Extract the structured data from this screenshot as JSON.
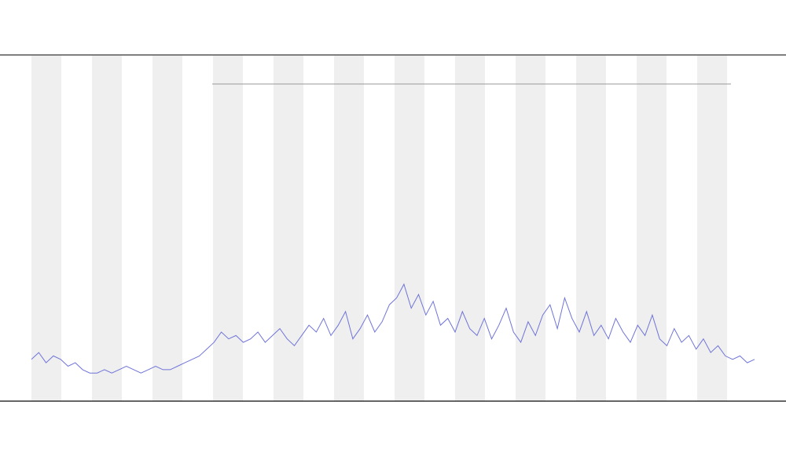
{
  "chart_data": {
    "type": "line",
    "color": "#6f74d8",
    "x": [
      0,
      1,
      2,
      3,
      4,
      5,
      6,
      7,
      8,
      9,
      10,
      11,
      12,
      13,
      14,
      15,
      16,
      17,
      18,
      19,
      20,
      21,
      22,
      23,
      24,
      25,
      26,
      27,
      28,
      29,
      30,
      31,
      32,
      33,
      34,
      35,
      36,
      37,
      38,
      39,
      40,
      41,
      42,
      43,
      44,
      45,
      46,
      47,
      48,
      49,
      50,
      51,
      52,
      53,
      54,
      55,
      56,
      57,
      58,
      59,
      60,
      61,
      62,
      63,
      64,
      65,
      66,
      67,
      68,
      69,
      70,
      71,
      72,
      73,
      74,
      75,
      76,
      77,
      78,
      79,
      80,
      81,
      82,
      83,
      84,
      85,
      86,
      87,
      88,
      89,
      90,
      91,
      92,
      93,
      94,
      95,
      96,
      97,
      98,
      99
    ],
    "values": [
      12,
      14,
      11,
      13,
      12,
      10,
      11,
      9,
      8,
      8,
      9,
      8,
      9,
      10,
      9,
      8,
      9,
      10,
      9,
      9,
      10,
      11,
      12,
      13,
      15,
      17,
      20,
      18,
      19,
      17,
      18,
      20,
      17,
      19,
      21,
      18,
      16,
      19,
      22,
      20,
      24,
      19,
      22,
      26,
      18,
      21,
      25,
      20,
      23,
      28,
      30,
      34,
      27,
      31,
      25,
      29,
      22,
      24,
      20,
      26,
      21,
      19,
      24,
      18,
      22,
      27,
      20,
      17,
      23,
      19,
      25,
      28,
      21,
      30,
      24,
      20,
      26,
      19,
      22,
      18,
      24,
      20,
      17,
      22,
      19,
      25,
      18,
      16,
      21,
      17,
      19,
      15,
      18,
      14,
      16,
      13,
      12,
      13,
      11,
      12
    ],
    "xlim": [
      0,
      99
    ],
    "ylim": [
      0,
      100
    ]
  }
}
